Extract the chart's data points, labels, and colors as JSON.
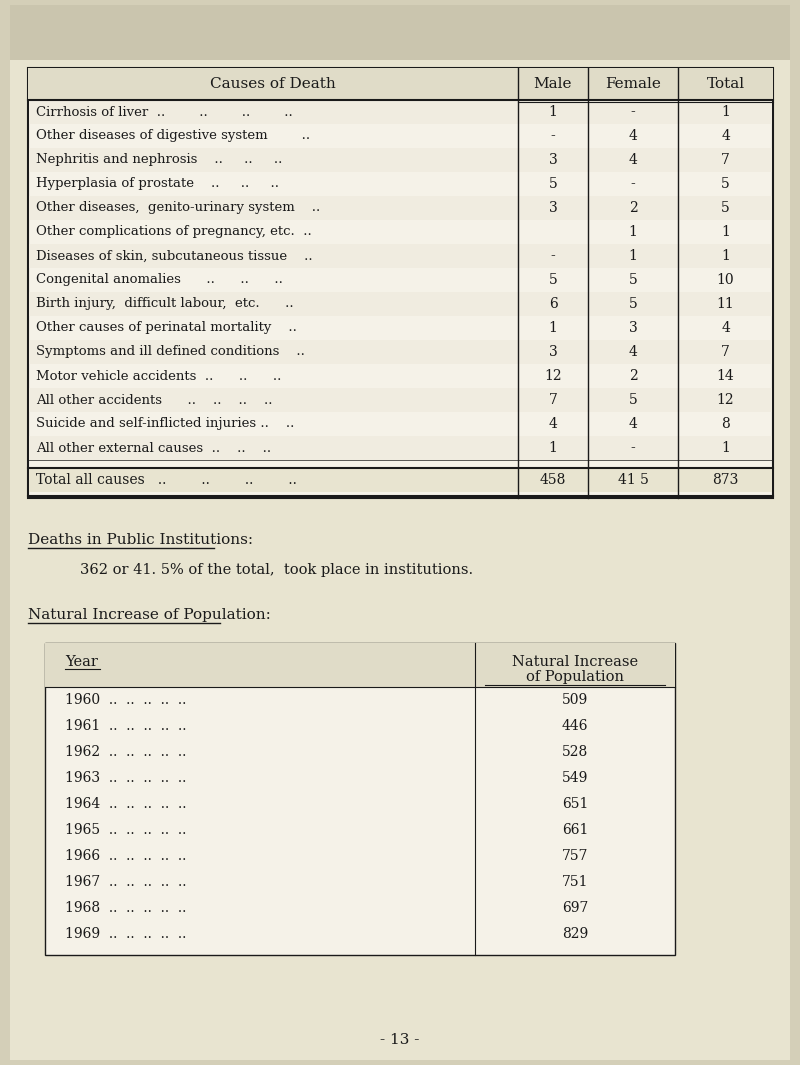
{
  "bg_color": "#d4cfb8",
  "page_bg": "#e8e4d0",
  "table_bg": "#f5f2e8",
  "text_color": "#1a1a1a",
  "title_row": [
    "Causes of Death",
    "Male",
    "Female",
    "Total"
  ],
  "rows": [
    [
      "Cirrhosis of liver  ..        ..        ..        ..",
      "1",
      "-",
      "1"
    ],
    [
      "Other diseases of digestive system        ..",
      "-",
      "4",
      "4"
    ],
    [
      "Nephritis and nephrosis    ..     ..     ..",
      "3",
      "4",
      "7"
    ],
    [
      "Hyperplasia of prostate    ..     ..     ..",
      "5",
      "-",
      "5"
    ],
    [
      "Other diseases,  genito-urinary system    ..",
      "3",
      "2",
      "5"
    ],
    [
      "Other complications of pregnancy, etc.  ..",
      "",
      "1",
      "1"
    ],
    [
      "Diseases of skin, subcutaneous tissue    ..",
      "-",
      "1",
      "1"
    ],
    [
      "Congenital anomalies      ..      ..      ..",
      "5",
      "5",
      "10"
    ],
    [
      "Birth injury,  difficult labour,  etc.      ..",
      "6",
      "5",
      "11"
    ],
    [
      "Other causes of perinatal mortality    ..",
      "1",
      "3",
      "4"
    ],
    [
      "Symptoms and ill defined conditions    ..",
      "3",
      "4",
      "7"
    ],
    [
      "Motor vehicle accidents  ..      ..      ..",
      "12",
      "2",
      "14"
    ],
    [
      "All other accidents      ..    ..    ..    ..",
      "7",
      "5",
      "12"
    ],
    [
      "Suicide and self-inflicted injuries ..    ..",
      "4",
      "4",
      "8"
    ],
    [
      "All other external causes  ..    ..    ..",
      "1",
      "-",
      "1"
    ]
  ],
  "total_row": [
    "Total all causes   ..        ..        ..        ..",
    "458",
    "41 5",
    "873"
  ],
  "deaths_heading": "Deaths in Public Institutions:",
  "deaths_text": "362 or 41. 5% of the total,  took place in institutions.",
  "natural_heading": "Natural Increase of Population:",
  "year_col_header": "Year",
  "ni_col_header1": "Natural Increase",
  "ni_col_header2": "of Population",
  "years_data": [
    [
      "1960",
      "509"
    ],
    [
      "1961",
      "446"
    ],
    [
      "1962",
      "528"
    ],
    [
      "1963",
      "549"
    ],
    [
      "1964",
      "651"
    ],
    [
      "1965",
      "661"
    ],
    [
      "1966",
      "757"
    ],
    [
      "1967",
      "751"
    ],
    [
      "1968",
      "697"
    ],
    [
      "1969",
      "829"
    ]
  ],
  "page_number": "- 13 -"
}
